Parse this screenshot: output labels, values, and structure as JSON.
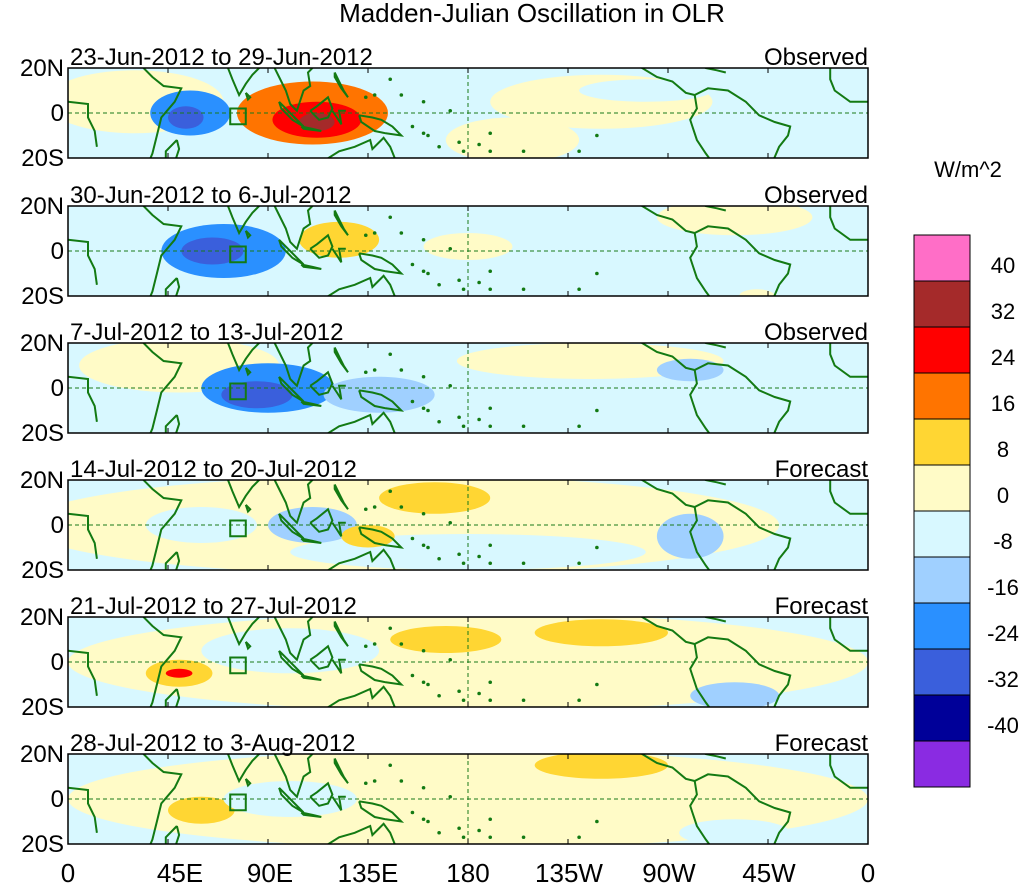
{
  "title": "Madden-Julian Oscillation in OLR",
  "units_label": "W/m^2",
  "lat_labels": [
    "20N",
    "0",
    "20S"
  ],
  "lon_labels": [
    "0",
    "45E",
    "90E",
    "135E",
    "180",
    "135W",
    "90W",
    "45W",
    "0"
  ],
  "colorbar": {
    "colors": [
      "#ff6ec7",
      "#a52a2a",
      "#ff0000",
      "#ff7400",
      "#ffd633",
      "#fffbc7",
      "#d8f8ff",
      "#a0d0ff",
      "#2a90ff",
      "#3a5fdc",
      "#000099",
      "#8a2be2"
    ],
    "ticks": [
      "40",
      "32",
      "24",
      "16",
      "8",
      "0",
      "-8",
      "-16",
      "-24",
      "-32",
      "-40"
    ]
  },
  "panels": [
    {
      "dates": "23-Jun-2012 to 29-Jun-2012",
      "status": "Observed"
    },
    {
      "dates": "30-Jun-2012 to 6-Jul-2012",
      "status": "Observed"
    },
    {
      "dates": "7-Jul-2012 to 13-Jul-2012",
      "status": "Observed"
    },
    {
      "dates": "14-Jul-2012 to 20-Jul-2012",
      "status": "Forecast"
    },
    {
      "dates": "21-Jul-2012 to 27-Jul-2012",
      "status": "Forecast"
    },
    {
      "dates": "28-Jul-2012 to 3-Aug-2012",
      "status": "Forecast"
    }
  ],
  "anomalies": [
    [
      {
        "lon": 30,
        "lat": 5,
        "rx": 40,
        "ry": 14,
        "value": 4
      },
      {
        "lon": 55,
        "lat": 0,
        "rx": 18,
        "ry": 10,
        "value": -20
      },
      {
        "lon": 53,
        "lat": -2,
        "rx": 8,
        "ry": 5,
        "value": -26
      },
      {
        "lon": 110,
        "lat": 0,
        "rx": 34,
        "ry": 14,
        "value": 18
      },
      {
        "lon": 112,
        "lat": -3,
        "rx": 20,
        "ry": 8,
        "value": 26
      },
      {
        "lon": 112,
        "lat": -4,
        "rx": 8,
        "ry": 4,
        "value": 34
      },
      {
        "lon": 240,
        "lat": 5,
        "rx": 50,
        "ry": 12,
        "value": 4
      },
      {
        "lon": 200,
        "lat": -12,
        "rx": 30,
        "ry": 10,
        "value": 6
      },
      {
        "lon": 260,
        "lat": 10,
        "rx": 30,
        "ry": 5,
        "value": -4
      }
    ],
    [
      {
        "lon": 200,
        "lat": 5,
        "rx": 160,
        "ry": 22,
        "value": -4
      },
      {
        "lon": 70,
        "lat": 0,
        "rx": 28,
        "ry": 12,
        "value": -18
      },
      {
        "lon": 65,
        "lat": 0,
        "rx": 14,
        "ry": 6,
        "value": -30
      },
      {
        "lon": 122,
        "lat": 5,
        "rx": 18,
        "ry": 8,
        "value": 10
      },
      {
        "lon": 180,
        "lat": 2,
        "rx": 20,
        "ry": 6,
        "value": 6
      },
      {
        "lon": 300,
        "lat": 15,
        "rx": 35,
        "ry": 8,
        "value": 4
      },
      {
        "lon": 310,
        "lat": -20,
        "rx": 8,
        "ry": 3,
        "value": 6
      }
    ],
    [
      {
        "lon": 140,
        "lat": 0,
        "rx": 140,
        "ry": 20,
        "value": -4
      },
      {
        "lon": 50,
        "lat": 10,
        "rx": 45,
        "ry": 12,
        "value": 4
      },
      {
        "lon": 90,
        "lat": 0,
        "rx": 30,
        "ry": 11,
        "value": -18
      },
      {
        "lon": 85,
        "lat": -3,
        "rx": 16,
        "ry": 6,
        "value": -26
      },
      {
        "lon": 140,
        "lat": -3,
        "rx": 25,
        "ry": 8,
        "value": -12
      },
      {
        "lon": 235,
        "lat": 12,
        "rx": 60,
        "ry": 8,
        "value": 4
      },
      {
        "lon": 280,
        "lat": 8,
        "rx": 15,
        "ry": 5,
        "value": -12
      }
    ],
    [
      {
        "lon": 150,
        "lat": 0,
        "rx": 170,
        "ry": 22,
        "value": 4
      },
      {
        "lon": 180,
        "lat": -12,
        "rx": 80,
        "ry": 8,
        "value": -4
      },
      {
        "lon": 60,
        "lat": 0,
        "rx": 25,
        "ry": 8,
        "value": -4
      },
      {
        "lon": 165,
        "lat": 12,
        "rx": 25,
        "ry": 7,
        "value": 10
      },
      {
        "lon": 110,
        "lat": 0,
        "rx": 20,
        "ry": 8,
        "value": -12
      },
      {
        "lon": 135,
        "lat": -5,
        "rx": 12,
        "ry": 5,
        "value": 10
      },
      {
        "lon": 280,
        "lat": -5,
        "rx": 15,
        "ry": 10,
        "value": -8
      }
    ],
    [
      {
        "lon": 180,
        "lat": 0,
        "rx": 180,
        "ry": 22,
        "value": 2
      },
      {
        "lon": 170,
        "lat": 10,
        "rx": 25,
        "ry": 6,
        "value": 12
      },
      {
        "lon": 240,
        "lat": 13,
        "rx": 30,
        "ry": 6,
        "value": 12
      },
      {
        "lon": 50,
        "lat": -5,
        "rx": 15,
        "ry": 6,
        "value": 12
      },
      {
        "lon": 50,
        "lat": -5,
        "rx": 6,
        "ry": 2,
        "value": 28
      },
      {
        "lon": 100,
        "lat": 5,
        "rx": 40,
        "ry": 10,
        "value": -4
      },
      {
        "lon": 300,
        "lat": -15,
        "rx": 20,
        "ry": 6,
        "value": -10
      }
    ],
    [
      {
        "lon": 180,
        "lat": 0,
        "rx": 180,
        "ry": 22,
        "value": 2
      },
      {
        "lon": 240,
        "lat": 15,
        "rx": 30,
        "ry": 6,
        "value": 12
      },
      {
        "lon": 60,
        "lat": -5,
        "rx": 15,
        "ry": 6,
        "value": 10
      },
      {
        "lon": 100,
        "lat": 0,
        "rx": 30,
        "ry": 8,
        "value": -4
      },
      {
        "lon": 300,
        "lat": -15,
        "rx": 25,
        "ry": 6,
        "value": -4
      }
    ]
  ]
}
